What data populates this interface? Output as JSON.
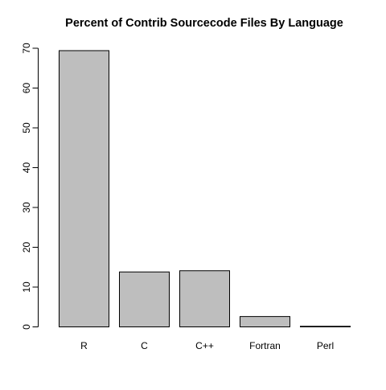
{
  "chart_data": {
    "type": "bar",
    "title": "Percent of Contrib Sourcecode Files By Language",
    "xlabel": "",
    "ylabel": "",
    "categories": [
      "R",
      "C",
      "C++",
      "Fortran",
      "Perl"
    ],
    "values": [
      69.4,
      13.8,
      14.1,
      2.6,
      0.15
    ],
    "ylim": [
      0,
      70
    ],
    "yticks": [
      0,
      10,
      20,
      30,
      40,
      50,
      60,
      70
    ],
    "grid": false,
    "legend": "none",
    "colors": {
      "bar_fill": "#bebebe",
      "bar_stroke": "#000000",
      "axis": "#000000",
      "text": "#000000"
    }
  }
}
